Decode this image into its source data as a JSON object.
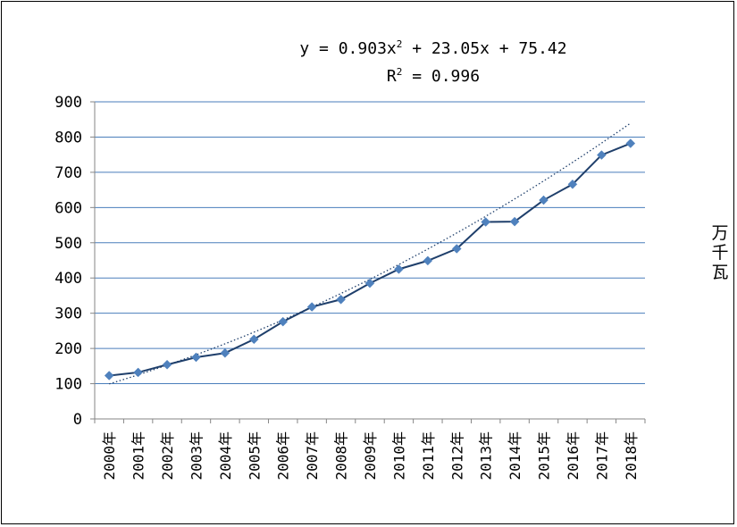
{
  "chart_data": {
    "type": "line",
    "categories": [
      "2000年",
      "2001年",
      "2002年",
      "2003年",
      "2004年",
      "2005年",
      "2006年",
      "2007年",
      "2008年",
      "2009年",
      "2010年",
      "2011年",
      "2012年",
      "2013年",
      "2014年",
      "2015年",
      "2016年",
      "2017年",
      "2018年"
    ],
    "series": [
      {
        "values": [
          123,
          132,
          154,
          175,
          187,
          226,
          276,
          318,
          339,
          385,
          425,
          449,
          483,
          559,
          560,
          621,
          666,
          749,
          782
        ],
        "color": "#4F81BD",
        "marker": "diamond",
        "line_color": "#1F3F6B"
      }
    ],
    "trendline": {
      "type": "polynomial",
      "order": 2,
      "a": 0.903,
      "b": 23.05,
      "c": 75.42,
      "style": "dotted",
      "color": "#1F3F6B"
    },
    "equation": {
      "prefix": "y = 0.903x",
      "sup": "2",
      "suffix": " + 23.05x + 75.42"
    },
    "r2": {
      "prefix": "R",
      "sup": "2",
      "suffix": " = 0.996"
    },
    "ylabel_chars": [
      "万",
      "千",
      "瓦"
    ],
    "ylim": [
      0,
      900
    ],
    "yticks": [
      0,
      100,
      200,
      300,
      400,
      500,
      600,
      700,
      800,
      900
    ],
    "grid": true,
    "gridline_color": "#4A7EBB"
  }
}
